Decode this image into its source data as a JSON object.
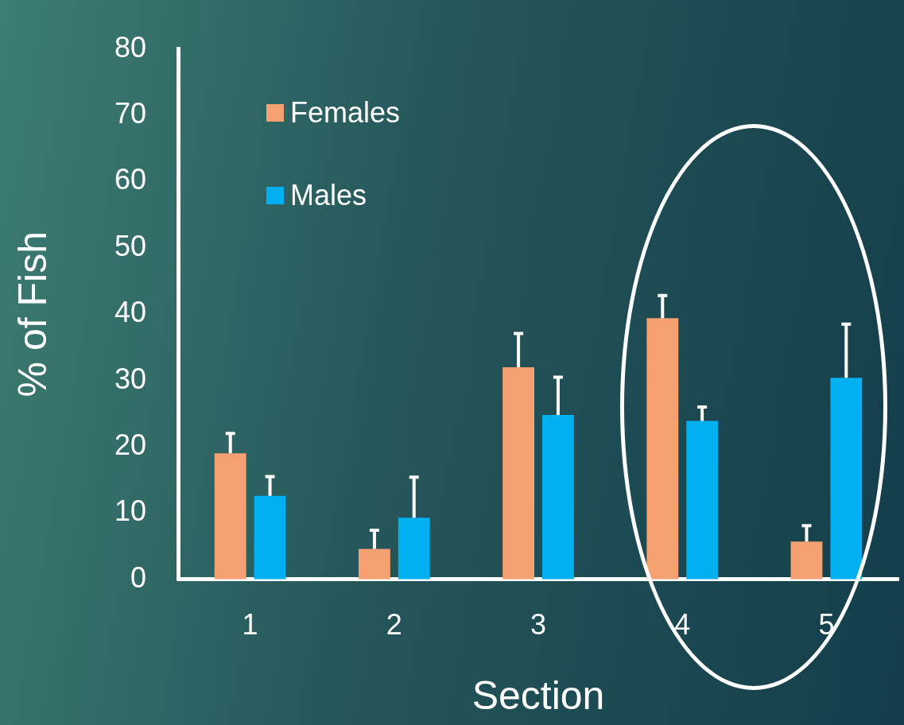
{
  "chart_data": {
    "type": "bar",
    "xlabel": "Section",
    "ylabel": "% of Fish",
    "categories": [
      "1",
      "2",
      "3",
      "4",
      "5"
    ],
    "series": [
      {
        "name": "Females",
        "color": "#f4a070",
        "values": [
          19,
          4.6,
          32,
          39.4,
          5.7
        ],
        "errors": [
          [
            19,
            22
          ],
          [
            4.6,
            7.4
          ],
          [
            32,
            37.1
          ],
          [
            39.4,
            42.8
          ],
          [
            5.7,
            8.1
          ]
        ]
      },
      {
        "name": "Males",
        "color": "#00b0f0",
        "values": [
          12.6,
          9.3,
          24.8,
          23.9,
          30.4
        ],
        "errors": [
          [
            12.6,
            15.5
          ],
          [
            9.3,
            15.4
          ],
          [
            24.8,
            30.5
          ],
          [
            23.9,
            26
          ],
          [
            30.4,
            38.5
          ]
        ]
      }
    ],
    "ylim": [
      0,
      80
    ],
    "yticks": [
      0,
      10,
      20,
      30,
      40,
      50,
      60,
      70,
      80
    ],
    "grid": false,
    "legend": "top left"
  }
}
